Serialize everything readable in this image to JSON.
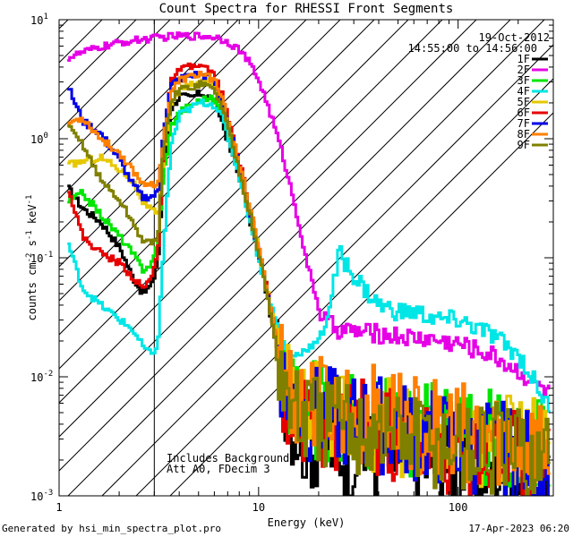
{
  "chart_data": {
    "type": "line",
    "title": "Count Spectra for RHESSI Front Segments",
    "xlabel": "Energy (keV)",
    "ylabel_parts": {
      "a": "counts cm",
      "b": "-2",
      "c": " s",
      "d": "-1",
      "e": " keV",
      "f": "-1"
    },
    "xscale": "log",
    "yscale": "log",
    "xlim": [
      1,
      300
    ],
    "ylim": [
      0.001,
      10
    ],
    "x_ticks": [
      {
        "v": 1,
        "label": "1"
      },
      {
        "v": 10,
        "label": "10"
      },
      {
        "v": 100,
        "label": "100"
      }
    ],
    "y_ticks": [
      {
        "v": 0.001,
        "base": "10",
        "exp": "-3"
      },
      {
        "v": 0.01,
        "base": "10",
        "exp": "-2"
      },
      {
        "v": 0.1,
        "base": "10",
        "exp": "-1"
      },
      {
        "v": 1,
        "base": "10",
        "exp": "0"
      },
      {
        "v": 10,
        "base": "10",
        "exp": "1"
      }
    ],
    "hatch_region_keV": [
      1,
      3
    ],
    "date": "19-Oct-2012",
    "time_range": "14:55:00 to 14:56:00",
    "annotations": [
      "Includes Background",
      "Att A0, FDecim 3"
    ],
    "footer_left": "Generated by hsi_min_spectra_plot.pro",
    "footer_right": "17-Apr-2023 06:20",
    "series": [
      {
        "name": "1F",
        "color": "#000000",
        "e": [
          1.1,
          1.3,
          1.6,
          2.0,
          2.3,
          2.6,
          2.9,
          3.1,
          3.3,
          3.6,
          4.0,
          4.5,
          5.0,
          5.5,
          6.0,
          6.5,
          7.0,
          8.0,
          9.0,
          10.0,
          11.0,
          12.0,
          13.0,
          14.0,
          15.0,
          17.0,
          20.0,
          25.0,
          30.0,
          40.0,
          50.0,
          60.0,
          80.0,
          100.0,
          150.0,
          200.0,
          290.0
        ],
        "v": [
          0.38,
          0.26,
          0.2,
          0.12,
          0.07,
          0.05,
          0.06,
          0.1,
          0.6,
          1.8,
          2.3,
          2.2,
          2.4,
          2.3,
          2.0,
          1.4,
          0.9,
          0.45,
          0.2,
          0.1,
          0.045,
          0.02,
          0.01,
          0.006,
          0.004,
          0.003,
          0.0028,
          0.0026,
          0.0024,
          0.0022,
          0.0021,
          0.002,
          0.0019,
          0.0018,
          0.0017,
          0.0016,
          0.0015
        ]
      },
      {
        "name": "2F",
        "color": "#e600e6",
        "e": [
          1.1,
          1.3,
          1.6,
          2.0,
          2.5,
          3.0,
          3.5,
          4.0,
          5.0,
          6.0,
          7.0,
          8.0,
          9.0,
          10.0,
          11.0,
          12.0,
          13.0,
          14.0,
          15.0,
          16.0,
          17.0,
          18.0,
          19.0,
          20.0,
          22.0,
          25.0,
          30.0,
          40.0,
          50.0,
          60.0,
          70.0,
          80.0,
          100.0,
          120.0,
          150.0,
          200.0,
          250.0,
          290.0
        ],
        "v": [
          4.8,
          5.3,
          5.9,
          6.4,
          6.8,
          7.0,
          7.2,
          7.3,
          7.3,
          7.2,
          6.5,
          5.5,
          4.2,
          3.0,
          1.9,
          1.2,
          0.75,
          0.45,
          0.28,
          0.17,
          0.1,
          0.07,
          0.05,
          0.035,
          0.028,
          0.025,
          0.024,
          0.023,
          0.022,
          0.021,
          0.021,
          0.02,
          0.019,
          0.017,
          0.015,
          0.011,
          0.0085,
          0.007
        ]
      },
      {
        "name": "3F",
        "color": "#00e600",
        "e": [
          1.1,
          1.3,
          1.6,
          2.0,
          2.3,
          2.6,
          2.9,
          3.1,
          3.3,
          3.6,
          4.0,
          4.5,
          5.0,
          5.5,
          6.0,
          6.5,
          7.0,
          8.0,
          9.0,
          10.0,
          11.0,
          12.0,
          13.0,
          14.0,
          15.0,
          17.0,
          20.0,
          25.0,
          30.0,
          40.0,
          50.0,
          60.0,
          80.0,
          100.0,
          150.0,
          200.0,
          290.0
        ],
        "v": [
          0.3,
          0.35,
          0.23,
          0.15,
          0.11,
          0.08,
          0.09,
          0.14,
          0.5,
          1.3,
          1.7,
          1.9,
          2.1,
          2.2,
          2.1,
          1.6,
          1.1,
          0.5,
          0.22,
          0.1,
          0.05,
          0.02,
          0.01,
          0.007,
          0.006,
          0.0055,
          0.005,
          0.0048,
          0.0045,
          0.0042,
          0.004,
          0.0038,
          0.0036,
          0.0034,
          0.003,
          0.0028,
          0.0025
        ]
      },
      {
        "name": "4F",
        "color": "#00e6e6",
        "e": [
          1.1,
          1.3,
          1.6,
          2.0,
          2.3,
          2.6,
          2.9,
          3.1,
          3.3,
          3.6,
          4.0,
          4.5,
          5.0,
          5.5,
          6.0,
          6.5,
          7.0,
          8.0,
          9.0,
          10.0,
          11.0,
          12.0,
          13.0,
          14.0,
          15.0,
          16.0,
          17.0,
          18.0,
          20.0,
          22.0,
          24.0,
          25.0,
          27.0,
          30.0,
          35.0,
          40.0,
          50.0,
          60.0,
          80.0,
          100.0,
          150.0,
          200.0,
          250.0,
          290.0
        ],
        "v": [
          0.13,
          0.055,
          0.04,
          0.03,
          0.025,
          0.018,
          0.015,
          0.02,
          0.12,
          0.9,
          1.6,
          1.8,
          2.0,
          2.0,
          1.9,
          1.5,
          1.0,
          0.45,
          0.2,
          0.09,
          0.05,
          0.03,
          0.02,
          0.016,
          0.015,
          0.016,
          0.017,
          0.018,
          0.02,
          0.035,
          0.07,
          0.11,
          0.09,
          0.07,
          0.05,
          0.04,
          0.035,
          0.035,
          0.03,
          0.03,
          0.022,
          0.015,
          0.008,
          0.005
        ]
      },
      {
        "name": "5F",
        "color": "#e6c800",
        "e": [
          1.1,
          1.3,
          1.6,
          2.0,
          2.3,
          2.6,
          2.9,
          3.1,
          3.3,
          3.6,
          4.0,
          4.5,
          5.0,
          5.5,
          6.0,
          6.5,
          7.0,
          8.0,
          9.0,
          10.0,
          11.0,
          12.0,
          13.0,
          14.0,
          15.0,
          17.0,
          20.0,
          25.0,
          30.0,
          40.0,
          50.0,
          60.0,
          80.0,
          100.0,
          150.0,
          200.0,
          290.0
        ],
        "v": [
          0.6,
          0.65,
          0.7,
          0.55,
          0.45,
          0.3,
          0.25,
          0.22,
          0.7,
          2.0,
          2.6,
          2.8,
          3.0,
          3.0,
          2.7,
          2.0,
          1.3,
          0.55,
          0.25,
          0.11,
          0.05,
          0.025,
          0.012,
          0.008,
          0.006,
          0.0055,
          0.005,
          0.0048,
          0.0045,
          0.004,
          0.0038,
          0.0035,
          0.0032,
          0.003,
          0.0028,
          0.0026,
          0.0024
        ]
      },
      {
        "name": "6F",
        "color": "#e60000",
        "e": [
          1.1,
          1.3,
          1.6,
          2.0,
          2.3,
          2.6,
          2.9,
          3.1,
          3.3,
          3.6,
          4.0,
          4.5,
          5.0,
          5.5,
          6.0,
          6.5,
          7.0,
          8.0,
          9.0,
          10.0,
          11.0,
          12.0,
          13.0,
          14.0,
          15.0,
          17.0,
          20.0,
          25.0,
          30.0,
          40.0,
          50.0,
          60.0,
          80.0,
          100.0,
          150.0,
          200.0,
          290.0
        ],
        "v": [
          0.38,
          0.15,
          0.11,
          0.09,
          0.07,
          0.055,
          0.07,
          0.12,
          0.9,
          3.0,
          3.8,
          4.0,
          4.1,
          3.8,
          3.3,
          2.3,
          1.4,
          0.6,
          0.25,
          0.1,
          0.05,
          0.02,
          0.009,
          0.006,
          0.005,
          0.0045,
          0.0042,
          0.004,
          0.0038,
          0.0035,
          0.0032,
          0.003,
          0.0028,
          0.0026,
          0.0024,
          0.0022,
          0.002
        ]
      },
      {
        "name": "7F",
        "color": "#0000e6",
        "e": [
          1.1,
          1.3,
          1.6,
          2.0,
          2.3,
          2.6,
          2.9,
          3.1,
          3.3,
          3.6,
          4.0,
          4.5,
          5.0,
          5.5,
          6.0,
          6.5,
          7.0,
          8.0,
          9.0,
          10.0,
          11.0,
          12.0,
          13.0,
          14.0,
          15.0,
          17.0,
          20.0,
          25.0,
          30.0,
          40.0,
          50.0,
          60.0,
          80.0,
          100.0,
          150.0,
          200.0,
          290.0
        ],
        "v": [
          2.7,
          1.4,
          1.1,
          0.65,
          0.42,
          0.32,
          0.33,
          0.35,
          1.2,
          2.8,
          3.2,
          3.4,
          3.5,
          3.3,
          2.9,
          2.0,
          1.3,
          0.55,
          0.24,
          0.1,
          0.05,
          0.022,
          0.01,
          0.007,
          0.0055,
          0.005,
          0.0048,
          0.0045,
          0.0042,
          0.004,
          0.0036,
          0.0034,
          0.003,
          0.0028,
          0.0025,
          0.0022,
          0.0018
        ]
      },
      {
        "name": "8F",
        "color": "#ff8000",
        "e": [
          1.1,
          1.3,
          1.6,
          2.0,
          2.3,
          2.6,
          2.9,
          3.1,
          3.3,
          3.6,
          4.0,
          4.5,
          5.0,
          5.5,
          6.0,
          6.5,
          7.0,
          8.0,
          9.0,
          10.0,
          11.0,
          12.0,
          13.0,
          14.0,
          15.0,
          17.0,
          20.0,
          25.0,
          30.0,
          40.0,
          50.0,
          60.0,
          80.0,
          100.0,
          150.0,
          200.0,
          290.0
        ],
        "v": [
          1.35,
          1.5,
          1.0,
          0.75,
          0.55,
          0.42,
          0.43,
          0.4,
          1.0,
          2.5,
          3.1,
          3.3,
          3.5,
          3.4,
          3.0,
          2.1,
          1.35,
          0.58,
          0.25,
          0.11,
          0.05,
          0.023,
          0.012,
          0.008,
          0.0065,
          0.006,
          0.0058,
          0.0055,
          0.005,
          0.0048,
          0.0045,
          0.004,
          0.0038,
          0.0035,
          0.003,
          0.0028,
          0.0025
        ]
      },
      {
        "name": "9F",
        "color": "#808000",
        "e": [
          1.1,
          1.3,
          1.6,
          2.0,
          2.3,
          2.6,
          2.9,
          3.1,
          3.3,
          3.6,
          4.0,
          4.5,
          5.0,
          5.5,
          6.0,
          6.5,
          7.0,
          8.0,
          9.0,
          10.0,
          11.0,
          12.0,
          13.0,
          14.0,
          15.0,
          17.0,
          20.0,
          25.0,
          30.0,
          40.0,
          50.0,
          60.0,
          80.0,
          100.0,
          150.0,
          200.0,
          290.0
        ],
        "v": [
          1.25,
          0.9,
          0.45,
          0.3,
          0.2,
          0.14,
          0.13,
          0.16,
          0.8,
          2.1,
          2.6,
          2.7,
          2.9,
          2.8,
          2.5,
          1.8,
          1.2,
          0.5,
          0.22,
          0.1,
          0.045,
          0.02,
          0.01,
          0.0065,
          0.005,
          0.0045,
          0.0042,
          0.004,
          0.0038,
          0.0035,
          0.0032,
          0.003,
          0.0028,
          0.0026,
          0.0024,
          0.0022,
          0.002
        ]
      }
    ]
  }
}
